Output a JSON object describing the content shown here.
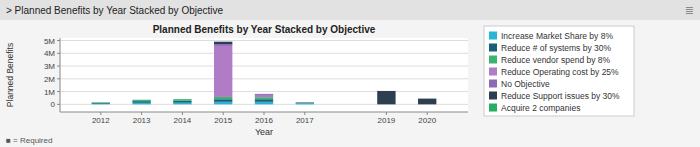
{
  "chart_data": {
    "type": "bar",
    "title": "Planned Benefits by Year Stacked by Objective",
    "subtitle": "> Planned Benefits by Year Stacked by Objective",
    "annotations": [
      "≣",
      "■ = Required"
    ],
    "x_label": "Year",
    "y_label": "Planned Benefits",
    "x": [
      2012,
      2013,
      2014,
      2015,
      2016,
      2017,
      2019,
      2020
    ],
    "xlim": [
      2011,
      2021
    ],
    "xticks": [
      2012,
      2013,
      2014,
      2015,
      2016,
      2017,
      2019,
      2020
    ],
    "ylim": [
      -600000,
      5200000
    ],
    "yticks": [
      0,
      {
        "value": 1000000,
        "label": "1M"
      },
      {
        "value": 2000000,
        "label": "2M"
      },
      {
        "value": 3000000,
        "label": "3M"
      },
      {
        "value": 4000000,
        "label": "4M"
      },
      {
        "value": 5000000,
        "label": "5M"
      }
    ],
    "stacked": true,
    "grid": true,
    "legend": "right",
    "series": [
      {
        "name": "Increase Market Share by 8%",
        "color": "#29B5D8",
        "values": [
          50000,
          120000,
          130000,
          200000,
          200000,
          80000,
          0,
          0
        ]
      },
      {
        "name": "Reduce # of systems by 30%",
        "color": "#1A5F7A",
        "values": [
          60000,
          130000,
          150000,
          200000,
          200000,
          70000,
          0,
          0
        ]
      },
      {
        "name": "Reduce vendor spend by 8%",
        "color": "#3CB371",
        "values": [
          50000,
          110000,
          130000,
          180000,
          160000,
          0,
          0,
          0
        ]
      },
      {
        "name": "Reduce Operating cost by 25%",
        "color": "#B07CC6",
        "values": [
          0,
          0,
          0,
          4000000,
          180000,
          0,
          0,
          0
        ]
      },
      {
        "name": "No Objective",
        "color": "#8B6BB1",
        "values": [
          0,
          0,
          0,
          150000,
          80000,
          0,
          0,
          0
        ]
      },
      {
        "name": "Reduce Support issues by 30%",
        "color": "#2C3E50",
        "values": [
          0,
          0,
          0,
          180000,
          0,
          0,
          1050000,
          450000
        ]
      },
      {
        "name": "Acquire 2 companies",
        "color": "#27AE60",
        "values": [
          0,
          0,
          0,
          0,
          0,
          0,
          0,
          0
        ]
      }
    ]
  }
}
